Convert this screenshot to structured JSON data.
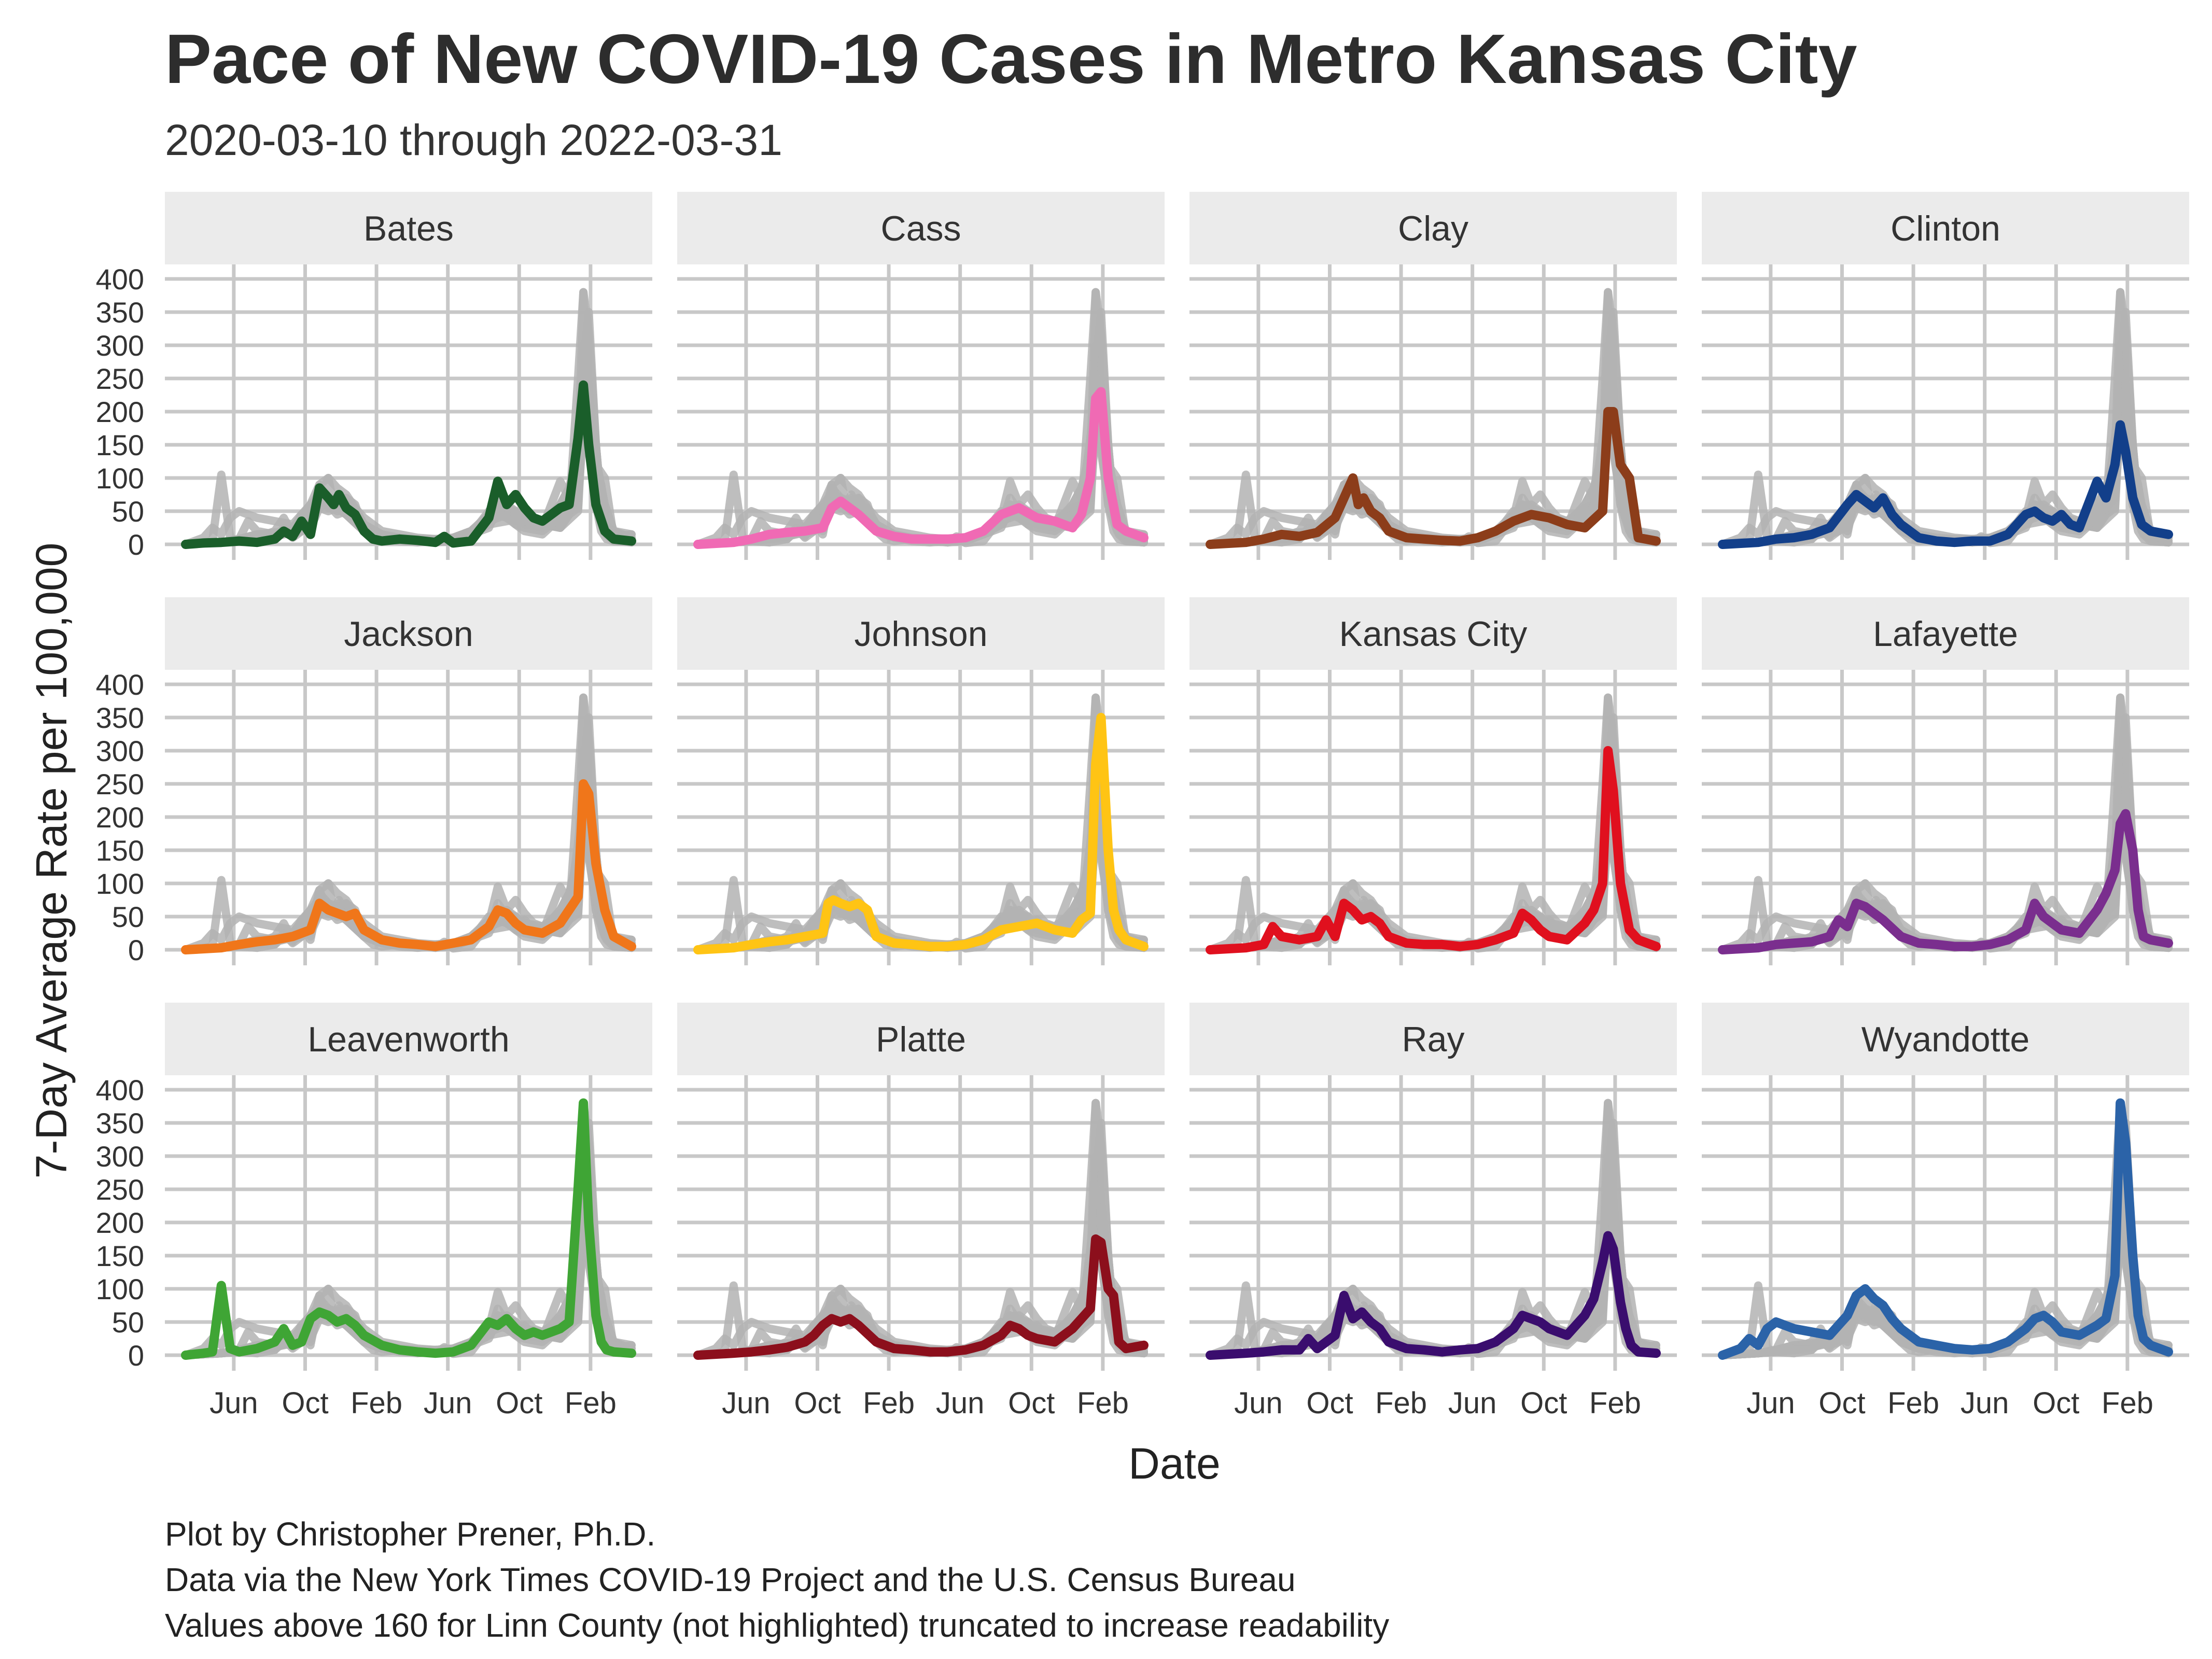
{
  "title": "Pace of New COVID-19 Cases in Metro Kansas City",
  "subtitle": "2020-03-10 through 2022-03-31",
  "caption": [
    "Plot by Christopher Prener, Ph.D.",
    "Data via the New York Times COVID-19 Project and the U.S. Census Bureau",
    "Values above 160 for Linn County (not highlighted) truncated to increase readability"
  ],
  "chart_data": {
    "type": "line",
    "layout": "facet-grid 3x4",
    "xlabel": "Date",
    "ylabel": "7-Day Average Rate per 100,000",
    "x_domain_months": [
      0,
      25
    ],
    "x_ticks": [
      {
        "label": "Jun",
        "m": 2.7
      },
      {
        "label": "Oct",
        "m": 6.7
      },
      {
        "label": "Feb",
        "m": 10.7
      },
      {
        "label": "Jun",
        "m": 14.7
      },
      {
        "label": "Oct",
        "m": 18.7
      },
      {
        "label": "Feb",
        "m": 22.7
      }
    ],
    "ylim": [
      0,
      400
    ],
    "y_ticks": [
      0,
      50,
      100,
      150,
      200,
      250,
      300,
      350,
      400
    ],
    "background_series": "all counties in grey, repeated in each panel",
    "series": [
      {
        "name": "Bates",
        "color": "#1a5e2a",
        "x": [
          0,
          1,
          2,
          3,
          4,
          5,
          5.5,
          6,
          6.5,
          7,
          7.5,
          8,
          8.3,
          8.6,
          9,
          9.5,
          10,
          10.5,
          11,
          12,
          13,
          14,
          14.5,
          15,
          16,
          17,
          17.5,
          18,
          18.5,
          19,
          19.5,
          20,
          21,
          21.5,
          22,
          22.3,
          22.6,
          23,
          23.5,
          24,
          25
        ],
        "y": [
          0,
          2,
          3,
          5,
          3,
          8,
          20,
          12,
          35,
          15,
          85,
          70,
          60,
          75,
          55,
          45,
          20,
          8,
          5,
          8,
          6,
          3,
          12,
          2,
          5,
          40,
          95,
          60,
          75,
          55,
          40,
          35,
          55,
          60,
          160,
          240,
          150,
          60,
          20,
          8,
          5
        ]
      },
      {
        "name": "Cass",
        "color": "#f06ab4",
        "x": [
          0,
          2,
          3,
          4,
          5,
          6,
          7,
          7.5,
          8,
          8.5,
          9,
          10,
          11,
          12,
          13,
          14,
          15,
          16,
          17,
          18,
          19,
          20,
          21,
          21.5,
          22,
          22.3,
          22.6,
          23,
          23.5,
          24,
          25
        ],
        "y": [
          0,
          3,
          8,
          15,
          18,
          20,
          25,
          55,
          65,
          55,
          45,
          20,
          12,
          8,
          8,
          8,
          10,
          20,
          45,
          55,
          40,
          35,
          25,
          45,
          100,
          220,
          230,
          100,
          30,
          20,
          10
        ]
      },
      {
        "name": "Clay",
        "color": "#8c3d1a",
        "x": [
          0,
          2,
          3,
          4,
          5,
          6,
          7,
          7.5,
          8,
          8.3,
          8.6,
          9,
          9.5,
          10,
          11,
          12,
          13,
          14,
          15,
          16,
          17,
          18,
          19,
          20,
          21,
          22,
          22.3,
          22.6,
          23,
          23.5,
          24,
          25
        ],
        "y": [
          0,
          3,
          8,
          15,
          12,
          18,
          40,
          70,
          100,
          60,
          70,
          50,
          40,
          20,
          10,
          8,
          6,
          5,
          10,
          20,
          35,
          45,
          40,
          30,
          25,
          50,
          200,
          200,
          120,
          100,
          10,
          5
        ]
      },
      {
        "name": "Clinton",
        "color": "#123f8a",
        "x": [
          0,
          2,
          3,
          4,
          5,
          6,
          7,
          7.5,
          8,
          8.5,
          9,
          9.5,
          10,
          11,
          12,
          13,
          14,
          15,
          16,
          17,
          17.5,
          18,
          18.5,
          19,
          19.5,
          20,
          21,
          21.5,
          22,
          22.3,
          22.6,
          23,
          23.5,
          24,
          25
        ],
        "y": [
          0,
          3,
          8,
          10,
          15,
          25,
          60,
          75,
          65,
          55,
          70,
          45,
          30,
          10,
          5,
          3,
          5,
          5,
          15,
          45,
          50,
          40,
          35,
          45,
          30,
          25,
          95,
          70,
          120,
          180,
          140,
          70,
          30,
          20,
          15
        ]
      },
      {
        "name": "Jackson",
        "color": "#f0761a",
        "x": [
          0,
          2,
          3,
          4,
          5,
          6,
          7,
          7.5,
          8,
          8.5,
          9,
          9.5,
          10,
          11,
          12,
          13,
          14,
          15,
          16,
          17,
          17.5,
          18,
          18.5,
          19,
          20,
          21,
          21.5,
          22,
          22.3,
          22.6,
          23,
          23.5,
          24,
          25
        ],
        "y": [
          0,
          3,
          8,
          12,
          15,
          20,
          30,
          70,
          60,
          55,
          50,
          55,
          30,
          15,
          10,
          8,
          5,
          10,
          15,
          35,
          60,
          55,
          40,
          30,
          25,
          40,
          60,
          80,
          250,
          235,
          130,
          60,
          20,
          5
        ]
      },
      {
        "name": "Johnson",
        "color": "#ffc414",
        "x": [
          0,
          2,
          3,
          4,
          5,
          6,
          7,
          7.3,
          7.6,
          8,
          8.5,
          9,
          9.5,
          10,
          11,
          12,
          13,
          14,
          15,
          16,
          17,
          18,
          19,
          20,
          21,
          21.5,
          22,
          22.3,
          22.6,
          23,
          23.3,
          23.6,
          24,
          25
        ],
        "y": [
          0,
          3,
          8,
          12,
          15,
          20,
          25,
          70,
          75,
          70,
          65,
          70,
          60,
          20,
          10,
          8,
          5,
          5,
          8,
          15,
          30,
          35,
          40,
          30,
          25,
          45,
          55,
          280,
          350,
          150,
          60,
          30,
          15,
          5
        ]
      },
      {
        "name": "Kansas City",
        "color": "#e0101e",
        "x": [
          0,
          2,
          3,
          3.5,
          4,
          5,
          6,
          6.5,
          7,
          7.5,
          8,
          8.5,
          9,
          9.5,
          10,
          11,
          12,
          13,
          14,
          15,
          16,
          17,
          17.5,
          18,
          18.5,
          19,
          20,
          21,
          21.5,
          22,
          22.3,
          22.6,
          23,
          23.5,
          24,
          25
        ],
        "y": [
          0,
          3,
          8,
          35,
          20,
          15,
          20,
          45,
          20,
          70,
          60,
          45,
          50,
          40,
          20,
          10,
          8,
          8,
          5,
          8,
          15,
          25,
          55,
          45,
          30,
          20,
          15,
          40,
          60,
          100,
          300,
          240,
          100,
          30,
          15,
          5
        ]
      },
      {
        "name": "Lafayette",
        "color": "#7a2e8e",
        "x": [
          0,
          2,
          3,
          4,
          5,
          6,
          6.5,
          7,
          7.5,
          8,
          8.5,
          9,
          10,
          11,
          12,
          13,
          14,
          15,
          16,
          17,
          17.5,
          18,
          19,
          20,
          21,
          21.5,
          22,
          22.3,
          22.6,
          23,
          23.3,
          23.6,
          24,
          25
        ],
        "y": [
          0,
          3,
          8,
          10,
          12,
          20,
          45,
          35,
          70,
          65,
          55,
          45,
          20,
          10,
          8,
          5,
          5,
          8,
          15,
          30,
          70,
          50,
          30,
          25,
          60,
          85,
          120,
          190,
          205,
          150,
          60,
          20,
          15,
          10
        ]
      },
      {
        "name": "Leavenworth",
        "color": "#3fa535",
        "x": [
          0,
          1,
          1.5,
          2,
          2.5,
          3,
          4,
          5,
          5.5,
          6,
          6.5,
          7,
          7.5,
          8,
          8.5,
          9,
          9.5,
          10,
          11,
          12,
          13,
          14,
          15,
          16,
          17,
          17.5,
          18,
          18.5,
          19,
          19.5,
          20,
          21,
          21.5,
          22,
          22.3,
          22.6,
          23,
          23.3,
          23.6,
          24,
          25
        ],
        "y": [
          0,
          3,
          5,
          105,
          10,
          5,
          10,
          20,
          40,
          15,
          20,
          55,
          65,
          60,
          50,
          55,
          45,
          30,
          15,
          8,
          5,
          3,
          5,
          15,
          50,
          45,
          55,
          40,
          30,
          35,
          30,
          40,
          50,
          250,
          380,
          200,
          60,
          20,
          8,
          5,
          3
        ]
      },
      {
        "name": "Platte",
        "color": "#8c0f1c",
        "x": [
          0,
          2,
          3,
          4,
          5,
          6,
          6.5,
          7,
          7.5,
          8,
          8.5,
          9,
          10,
          11,
          12,
          13,
          14,
          15,
          16,
          17,
          17.5,
          18,
          18.5,
          19,
          20,
          21,
          21.5,
          22,
          22.3,
          22.6,
          23,
          23.3,
          23.6,
          24,
          25
        ],
        "y": [
          0,
          3,
          5,
          8,
          12,
          20,
          30,
          45,
          55,
          50,
          55,
          45,
          20,
          10,
          8,
          5,
          5,
          8,
          15,
          30,
          45,
          40,
          30,
          25,
          20,
          40,
          55,
          70,
          175,
          170,
          100,
          90,
          20,
          10,
          15
        ]
      },
      {
        "name": "Ray",
        "color": "#3a0d6e",
        "x": [
          0,
          2,
          3,
          4,
          5,
          5.5,
          6,
          6.5,
          7,
          7.5,
          8,
          8.5,
          9,
          9.5,
          10,
          11,
          12,
          13,
          14,
          15,
          16,
          17,
          17.5,
          18,
          18.5,
          19,
          20,
          21,
          21.5,
          22,
          22.3,
          22.6,
          23,
          23.3,
          23.6,
          24,
          25
        ],
        "y": [
          0,
          3,
          5,
          8,
          8,
          25,
          10,
          20,
          30,
          90,
          55,
          65,
          50,
          40,
          20,
          10,
          8,
          5,
          8,
          10,
          20,
          40,
          60,
          55,
          50,
          40,
          30,
          60,
          85,
          140,
          180,
          160,
          80,
          40,
          15,
          5,
          3
        ]
      },
      {
        "name": "Wyandotte",
        "color": "#2b63a8",
        "x": [
          0,
          1,
          1.5,
          2,
          2.5,
          3,
          4,
          5,
          6,
          7,
          7.5,
          8,
          8.5,
          9,
          9.5,
          10,
          11,
          12,
          13,
          14,
          15,
          16,
          17,
          17.5,
          18,
          18.5,
          19,
          20,
          21,
          21.5,
          22,
          22.3,
          22.6,
          23,
          23.3,
          23.6,
          24,
          25
        ],
        "y": [
          0,
          10,
          25,
          15,
          40,
          50,
          40,
          35,
          30,
          60,
          90,
          100,
          85,
          75,
          55,
          40,
          20,
          15,
          10,
          8,
          10,
          20,
          40,
          55,
          60,
          50,
          35,
          30,
          45,
          55,
          120,
          380,
          320,
          150,
          60,
          25,
          15,
          5
        ]
      }
    ]
  }
}
